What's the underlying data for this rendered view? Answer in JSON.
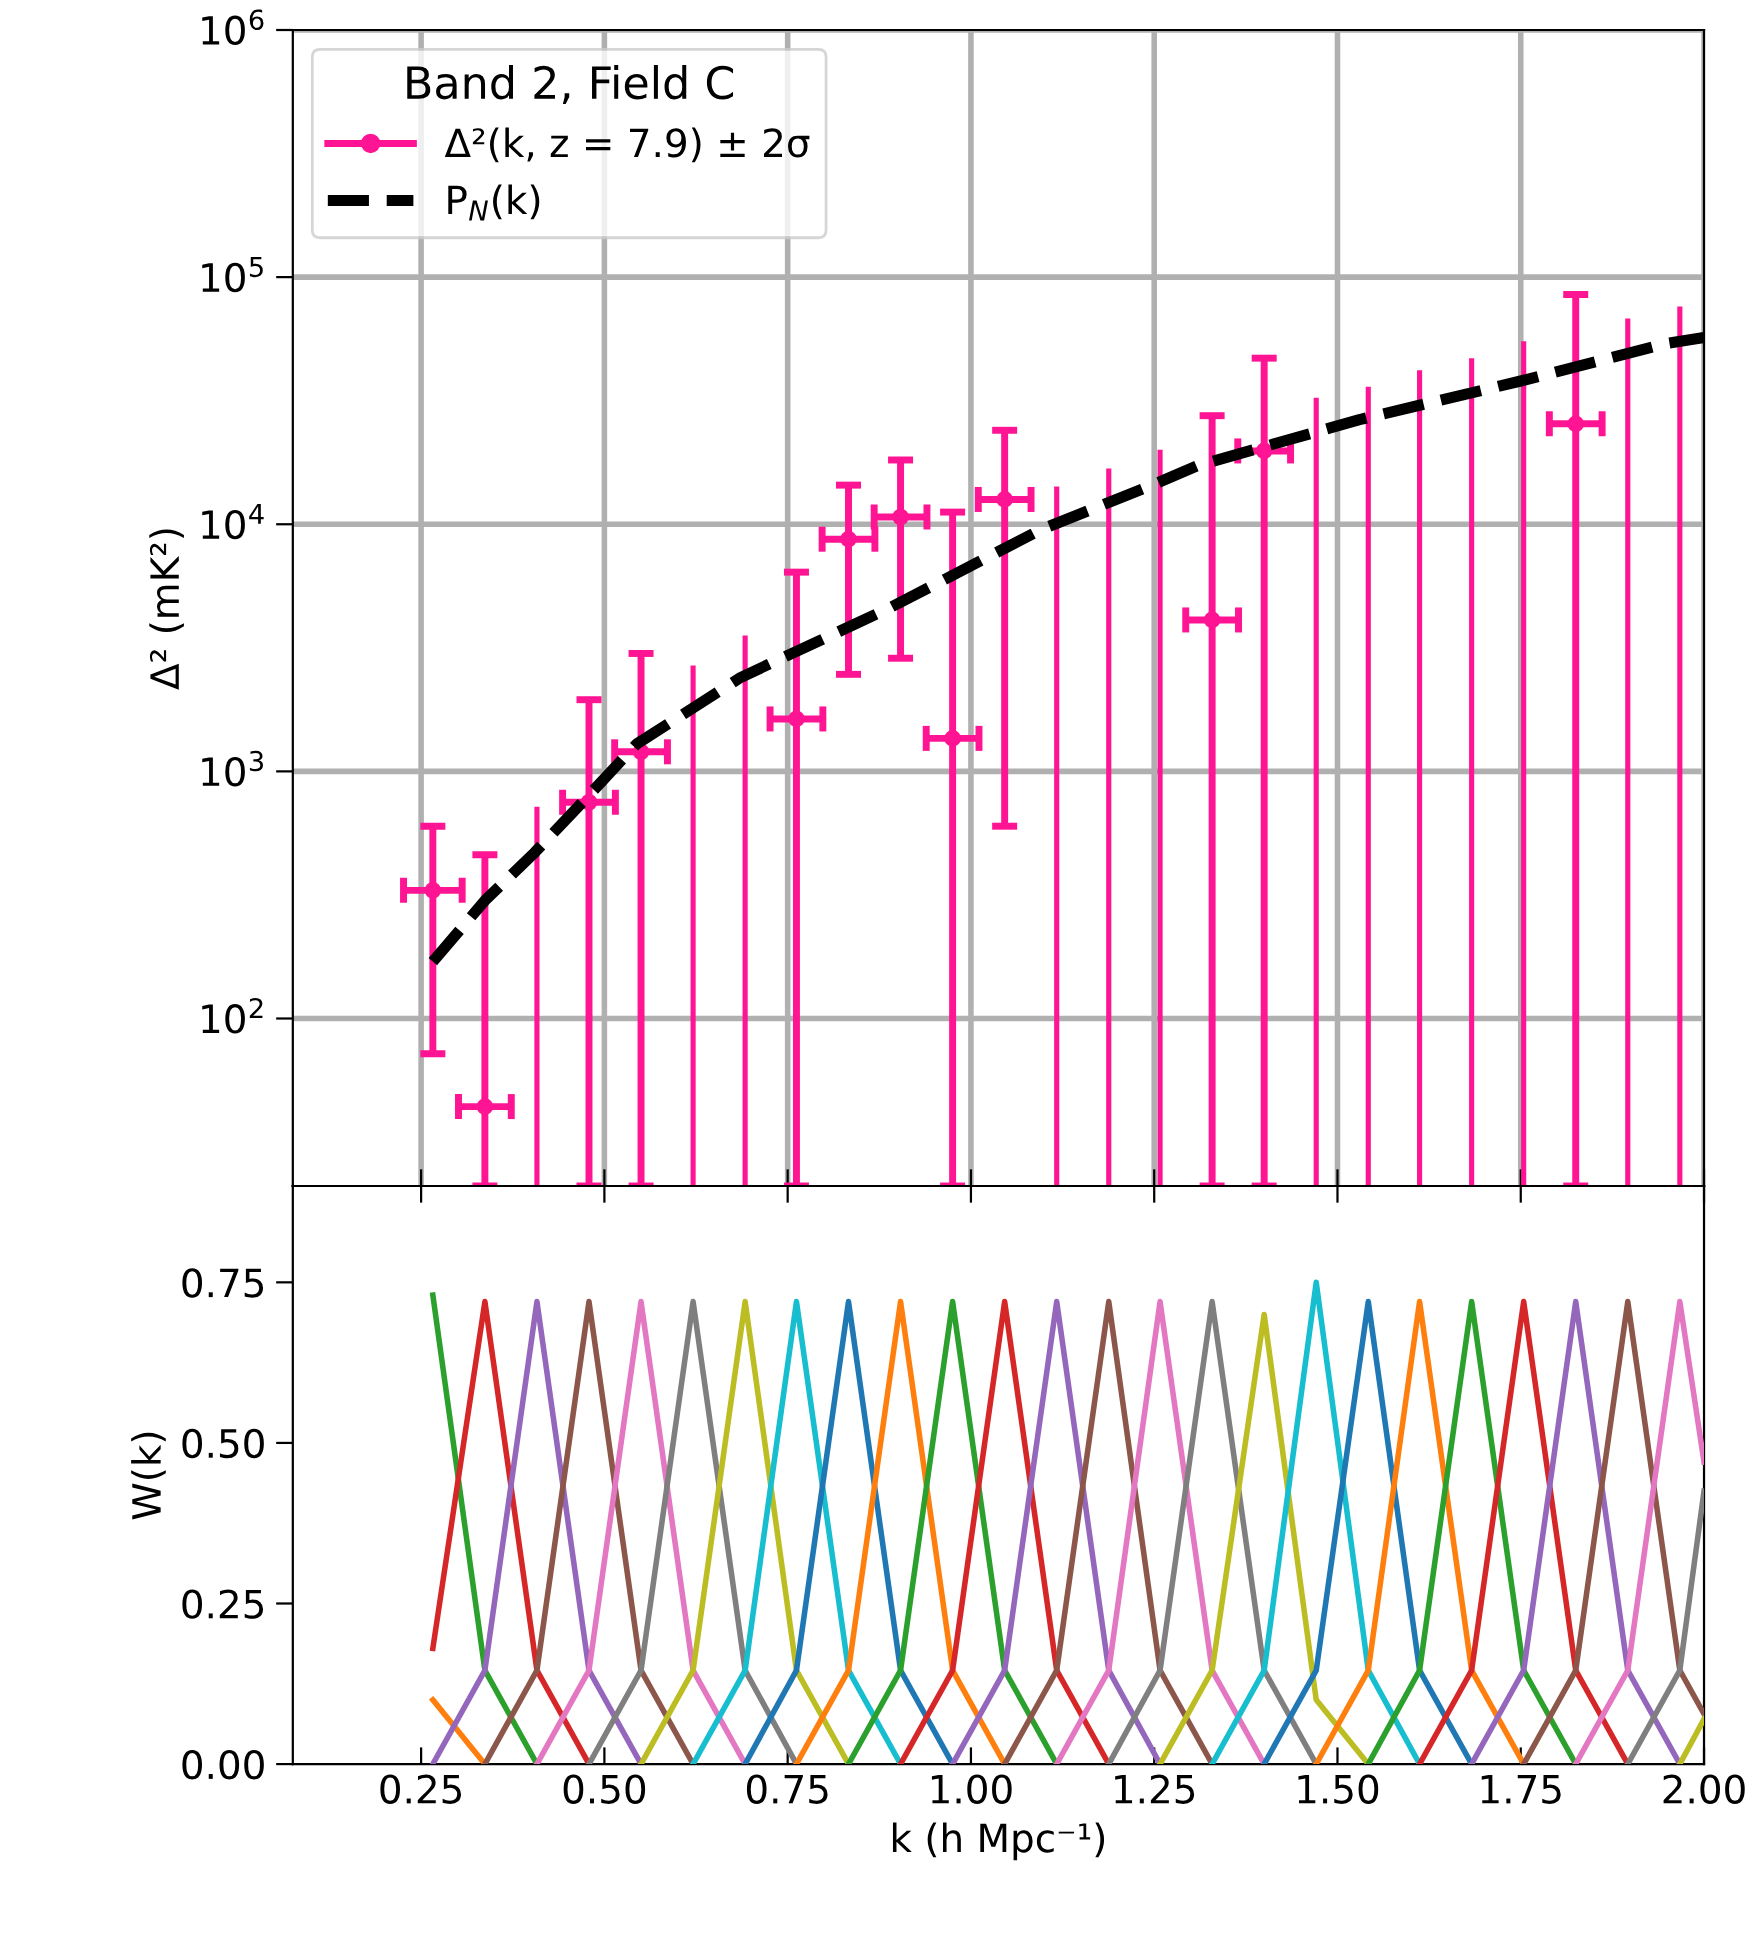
{
  "chart_data": [
    {
      "type": "scatter",
      "ylabel": "Δ² (mK²)",
      "legend_title": "Band 2, Field C",
      "legend": "top left",
      "log": "y",
      "grid": true,
      "tick_labels": "y",
      "xlim": [
        0.075,
        2.0
      ],
      "ylim": [
        21,
        1000000
      ],
      "xticks": [
        {
          "value": 0.25,
          "label": null
        },
        {
          "value": 0.5,
          "label": null
        },
        {
          "value": 0.75,
          "label": null
        },
        {
          "value": 1.0,
          "label": null
        },
        {
          "value": 1.25,
          "label": null
        },
        {
          "value": 1.5,
          "label": null
        },
        {
          "value": 1.75,
          "label": null
        },
        {
          "value": 2.0,
          "label": null
        }
      ],
      "yticks": [
        {
          "value": 100,
          "label": "10$^{2}$"
        },
        {
          "value": 1000,
          "label": "10$^{3}$"
        },
        {
          "value": 10000,
          "label": "10$^{4}$"
        },
        {
          "value": 100000,
          "label": "10$^{5}$"
        },
        {
          "value": 1000000,
          "label": "10$^{6}$"
        }
      ],
      "series": [
        {
          "type": "scatter",
          "name": "Δ²(k, z = 7.9) ± 2σ",
          "color": "#ff1493",
          "marker": "circle",
          "x": [
            0.266,
            0.337,
            0.479,
            0.55,
            0.762,
            0.833,
            0.904,
            0.975,
            1.046,
            1.329,
            1.4,
            1.825
          ],
          "values": [
            330,
            44,
            750,
            1200,
            1630,
            8700,
            10700,
            1360,
            12600,
            4100,
            19800,
            25500
          ],
          "errors": [
            [
              72,
              600
            ],
            [
              21,
              460
            ],
            [
              21,
              1950
            ],
            [
              21,
              3000
            ],
            [
              21,
              6400
            ],
            [
              2470,
              14400
            ],
            [
              2870,
              18200
            ],
            [
              21,
              11200
            ],
            [
              600,
              24000
            ],
            [
              21,
              27500
            ],
            [
              21,
              47000
            ],
            [
              21,
              85000
            ]
          ],
          "xerrors": [
            0.04,
            0.036,
            0.036,
            0.036,
            0.036,
            0.036,
            0.036,
            0.036,
            0.036,
            0.036,
            0.036,
            0.036
          ]
        },
        {
          "type": "bar",
          "color": "#ff1493",
          "x": [
            0.408,
            0.621,
            0.692,
            1.117,
            1.188,
            1.258,
            1.471,
            1.542,
            1.612,
            1.683,
            1.754,
            1.896,
            1.967
          ],
          "base": [
            21,
            21,
            21,
            21,
            21,
            21,
            21,
            21,
            21,
            21,
            21,
            21,
            21
          ],
          "values": [
            699,
            2659,
            3529,
            14179,
            16779,
            19979,
            32479,
            35979,
            41979,
            46979,
            54979,
            67979,
            75979
          ]
        },
        {
          "type": "line",
          "name": "P$_{N}$(k)",
          "color": "#000000",
          "line_style": "dashed",
          "x": [
            0.266,
            0.337,
            0.405,
            0.47,
            0.544,
            0.686,
            0.89,
            1.095,
            1.242,
            1.31,
            1.53,
            1.75,
            1.95,
            2.0
          ],
          "values": [
            170,
            300,
            470,
            750,
            1290,
            2400,
            4600,
            9500,
            14200,
            17300,
            26500,
            38000,
            54000,
            57000
          ]
        }
      ]
    },
    {
      "type": "line",
      "xlabel": "k (h Mpc⁻¹)",
      "ylabel": "W(k)",
      "xlim": [
        0.075,
        2.0
      ],
      "ylim": [
        0,
        0.9
      ],
      "xticks": [
        {
          "value": 0.25,
          "label": "0.25"
        },
        {
          "value": 0.5,
          "label": "0.50"
        },
        {
          "value": 0.75,
          "label": "0.75"
        },
        {
          "value": 1.0,
          "label": "1.00"
        },
        {
          "value": 1.25,
          "label": "1.25"
        },
        {
          "value": 1.5,
          "label": "1.50"
        },
        {
          "value": 1.75,
          "label": "1.75"
        },
        {
          "value": 2.0,
          "label": "2.00"
        }
      ],
      "yticks": [
        {
          "value": 0,
          "label": "0.00"
        },
        {
          "value": 0.25,
          "label": "0.25"
        },
        {
          "value": 0.5,
          "label": "0.50"
        },
        {
          "value": 0.75,
          "label": "0.75"
        }
      ],
      "series": [
        {
          "color": "#ff7f0e",
          "x": [
            0.266,
            0.337
          ],
          "values": [
            0.1,
            0
          ]
        },
        {
          "color": "#2ca02c",
          "x": [
            0.266,
            0.337,
            0.408
          ],
          "values": [
            0.73,
            0.146,
            0
          ]
        },
        {
          "color": "#d62728",
          "x": [
            0.266,
            0.337,
            0.408,
            0.479
          ],
          "values": [
            0.18,
            0.72,
            0.146,
            0
          ]
        },
        {
          "color": "#9467bd",
          "x": [
            0.266,
            0.337,
            0.408,
            0.479,
            0.55
          ],
          "values": [
            0,
            0.146,
            0.72,
            0.146,
            0
          ]
        },
        {
          "color": "#8c564b",
          "x": [
            0.337,
            0.408,
            0.479,
            0.55,
            0.621
          ],
          "values": [
            0,
            0.146,
            0.72,
            0.146,
            0
          ]
        },
        {
          "color": "#e377c2",
          "x": [
            0.408,
            0.479,
            0.55,
            0.621,
            0.692
          ],
          "values": [
            0,
            0.146,
            0.72,
            0.146,
            0
          ]
        },
        {
          "color": "#7f7f7f",
          "x": [
            0.479,
            0.55,
            0.621,
            0.692,
            0.762
          ],
          "values": [
            0,
            0.146,
            0.72,
            0.146,
            0
          ]
        },
        {
          "color": "#bcbd22",
          "x": [
            0.55,
            0.621,
            0.692,
            0.762,
            0.833
          ],
          "values": [
            0,
            0.146,
            0.72,
            0.146,
            0
          ]
        },
        {
          "color": "#17becf",
          "x": [
            0.621,
            0.692,
            0.762,
            0.833,
            0.904
          ],
          "values": [
            0,
            0.146,
            0.72,
            0.146,
            0
          ]
        },
        {
          "color": "#1f77b4",
          "x": [
            0.692,
            0.762,
            0.833,
            0.904,
            0.975
          ],
          "values": [
            0,
            0.146,
            0.72,
            0.146,
            0
          ]
        },
        {
          "color": "#ff7f0e",
          "x": [
            0.762,
            0.833,
            0.904,
            0.975,
            1.046
          ],
          "values": [
            0,
            0.146,
            0.72,
            0.146,
            0
          ]
        },
        {
          "color": "#2ca02c",
          "x": [
            0.833,
            0.904,
            0.975,
            1.046,
            1.117
          ],
          "values": [
            0,
            0.146,
            0.72,
            0.146,
            0
          ]
        },
        {
          "color": "#d62728",
          "x": [
            0.904,
            0.975,
            1.046,
            1.117,
            1.188
          ],
          "values": [
            0,
            0.146,
            0.72,
            0.146,
            0
          ]
        },
        {
          "color": "#9467bd",
          "x": [
            0.975,
            1.046,
            1.117,
            1.188,
            1.258
          ],
          "values": [
            0,
            0.146,
            0.72,
            0.146,
            0
          ]
        },
        {
          "color": "#8c564b",
          "x": [
            1.046,
            1.117,
            1.188,
            1.258,
            1.329
          ],
          "values": [
            0,
            0.146,
            0.72,
            0.146,
            0
          ]
        },
        {
          "color": "#e377c2",
          "x": [
            1.117,
            1.188,
            1.258,
            1.329,
            1.4
          ],
          "values": [
            0,
            0.146,
            0.72,
            0.146,
            0
          ]
        },
        {
          "color": "#7f7f7f",
          "x": [
            1.188,
            1.258,
            1.329,
            1.4,
            1.471
          ],
          "values": [
            0,
            0.146,
            0.72,
            0.146,
            0
          ]
        },
        {
          "color": "#bcbd22",
          "x": [
            1.258,
            1.329,
            1.4,
            1.471,
            1.542
          ],
          "values": [
            0,
            0.146,
            0.7,
            0.1,
            0
          ]
        },
        {
          "color": "#17becf",
          "x": [
            1.329,
            1.4,
            1.471,
            1.542,
            1.612
          ],
          "values": [
            0,
            0.146,
            0.75,
            0.146,
            0
          ]
        },
        {
          "color": "#1f77b4",
          "x": [
            1.4,
            1.471,
            1.542,
            1.612,
            1.683
          ],
          "values": [
            0,
            0.146,
            0.72,
            0.146,
            0
          ]
        },
        {
          "color": "#ff7f0e",
          "x": [
            1.471,
            1.542,
            1.612,
            1.683,
            1.754
          ],
          "values": [
            0,
            0.146,
            0.72,
            0.146,
            0
          ]
        },
        {
          "color": "#2ca02c",
          "x": [
            1.542,
            1.612,
            1.683,
            1.754,
            1.825
          ],
          "values": [
            0,
            0.146,
            0.72,
            0.146,
            0
          ]
        },
        {
          "color": "#d62728",
          "x": [
            1.612,
            1.683,
            1.754,
            1.825,
            1.896
          ],
          "values": [
            0,
            0.146,
            0.72,
            0.146,
            0
          ]
        },
        {
          "color": "#9467bd",
          "x": [
            1.683,
            1.754,
            1.825,
            1.896,
            1.967
          ],
          "values": [
            0,
            0.146,
            0.72,
            0.146,
            0
          ]
        },
        {
          "color": "#8c564b",
          "x": [
            1.754,
            1.825,
            1.896,
            1.967,
            2.0
          ],
          "values": [
            0,
            0.146,
            0.72,
            0.146,
            0.078
          ]
        },
        {
          "color": "#e377c2",
          "x": [
            1.825,
            1.896,
            1.967,
            2.0
          ],
          "values": [
            0,
            0.146,
            0.72,
            0.47
          ]
        },
        {
          "color": "#7f7f7f",
          "x": [
            1.896,
            1.967,
            2.0
          ],
          "values": [
            0,
            0.146,
            0.425
          ]
        },
        {
          "color": "#bcbd22",
          "x": [
            1.967,
            2.0
          ],
          "values": [
            0,
            0.07
          ]
        }
      ]
    }
  ]
}
